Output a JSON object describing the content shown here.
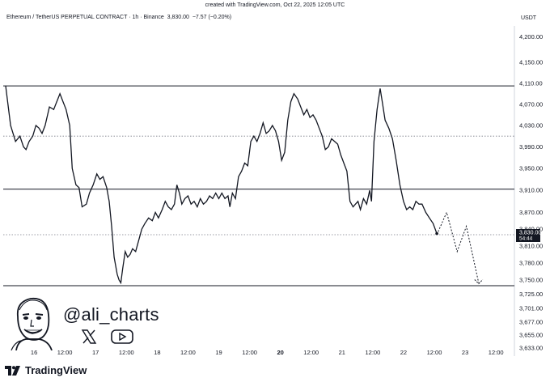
{
  "header": {
    "created": "created with TradingView.com, Oct 22, 2025 12:05 UTC",
    "symbol": "Ethereum / TetherUS PERPETUAL CONTRACT · 1h · Binance",
    "last": "3,830.00",
    "change": "−7.57 (−0.20%)",
    "currency": "USDT"
  },
  "price_label": {
    "price": "3,830.00",
    "countdown": "54:44"
  },
  "branding": {
    "handle": "@ali_charts",
    "footer": "TradingView"
  },
  "icons": {
    "avatar": "avatar-icon",
    "x": "x-icon",
    "youtube": "youtube-icon",
    "logo": "tradingview-logo-icon"
  },
  "colors": {
    "line": "#131722",
    "level": "#131722",
    "label_bg": "#131722"
  },
  "chart_data": {
    "type": "line",
    "title": "Ethereum / TetherUS PERPETUAL CONTRACT · 1h · Binance",
    "ylim": [
      3633,
      4215
    ],
    "y_scale": "log",
    "y_ticks": [
      "4,200.00",
      "4,150.00",
      "4,110.00",
      "4,070.00",
      "4,030.00",
      "3,990.00",
      "3,950.00",
      "3,910.00",
      "3,870.00",
      "3,840.00",
      "3,810.00",
      "3,780.00",
      "3,750.00",
      "3,725.00",
      "3,701.00",
      "3,677.00",
      "3,655.00",
      "3,633.00"
    ],
    "x_ticks": [
      {
        "label": "16",
        "x": 0.5
      },
      {
        "label": "12:00",
        "x": 1.0
      },
      {
        "label": "17",
        "x": 1.5
      },
      {
        "label": "12:00",
        "x": 2.0
      },
      {
        "label": "18",
        "x": 2.5
      },
      {
        "label": "12:00",
        "x": 3.0
      },
      {
        "label": "19",
        "x": 3.5
      },
      {
        "label": "12:00",
        "x": 4.0
      },
      {
        "label": "20",
        "x": 4.5,
        "bold": true
      },
      {
        "label": "12:00",
        "x": 5.0
      },
      {
        "label": "21",
        "x": 5.5
      },
      {
        "label": "12:00",
        "x": 6.0
      },
      {
        "label": "22",
        "x": 6.5
      },
      {
        "label": "12:00",
        "x": 7.0
      },
      {
        "label": "23",
        "x": 7.5
      },
      {
        "label": "12:00",
        "x": 8.0
      }
    ],
    "xlim": [
      0,
      8.3
    ],
    "horizontal_levels": [
      {
        "price": 4105,
        "style": "solid"
      },
      {
        "price": 3912,
        "style": "solid"
      },
      {
        "price": 3740,
        "style": "solid"
      },
      {
        "price": 4010,
        "style": "dotted"
      },
      {
        "price": 3830,
        "style": "dotted"
      }
    ],
    "series": [
      {
        "style": "solid",
        "points": [
          [
            0.04,
            4105
          ],
          [
            0.12,
            4030
          ],
          [
            0.2,
            4000
          ],
          [
            0.27,
            4010
          ],
          [
            0.33,
            3990
          ],
          [
            0.37,
            3985
          ],
          [
            0.42,
            4000
          ],
          [
            0.48,
            4010
          ],
          [
            0.53,
            4030
          ],
          [
            0.58,
            4025
          ],
          [
            0.63,
            4015
          ],
          [
            0.68,
            4030
          ],
          [
            0.75,
            4065
          ],
          [
            0.82,
            4060
          ],
          [
            0.87,
            4075
          ],
          [
            0.92,
            4090
          ],
          [
            0.97,
            4075
          ],
          [
            1.02,
            4060
          ],
          [
            1.08,
            4030
          ],
          [
            1.12,
            3950
          ],
          [
            1.18,
            3920
          ],
          [
            1.23,
            3915
          ],
          [
            1.28,
            3880
          ],
          [
            1.35,
            3885
          ],
          [
            1.4,
            3905
          ],
          [
            1.46,
            3920
          ],
          [
            1.52,
            3940
          ],
          [
            1.57,
            3930
          ],
          [
            1.62,
            3935
          ],
          [
            1.68,
            3915
          ],
          [
            1.72,
            3890
          ],
          [
            1.76,
            3845
          ],
          [
            1.8,
            3790
          ],
          [
            1.85,
            3760
          ],
          [
            1.88,
            3750
          ],
          [
            1.91,
            3745
          ],
          [
            1.94,
            3770
          ],
          [
            1.98,
            3800
          ],
          [
            2.02,
            3790
          ],
          [
            2.06,
            3795
          ],
          [
            2.1,
            3805
          ],
          [
            2.15,
            3800
          ],
          [
            2.2,
            3820
          ],
          [
            2.25,
            3840
          ],
          [
            2.3,
            3850
          ],
          [
            2.36,
            3860
          ],
          [
            2.42,
            3855
          ],
          [
            2.47,
            3870
          ],
          [
            2.52,
            3860
          ],
          [
            2.58,
            3875
          ],
          [
            2.63,
            3890
          ],
          [
            2.68,
            3880
          ],
          [
            2.73,
            3875
          ],
          [
            2.78,
            3885
          ],
          [
            2.82,
            3920
          ],
          [
            2.86,
            3905
          ],
          [
            2.9,
            3885
          ],
          [
            2.95,
            3895
          ],
          [
            3.0,
            3900
          ],
          [
            3.05,
            3885
          ],
          [
            3.1,
            3890
          ],
          [
            3.15,
            3880
          ],
          [
            3.2,
            3895
          ],
          [
            3.25,
            3885
          ],
          [
            3.3,
            3890
          ],
          [
            3.35,
            3900
          ],
          [
            3.4,
            3895
          ],
          [
            3.45,
            3905
          ],
          [
            3.5,
            3895
          ],
          [
            3.55,
            3905
          ],
          [
            3.6,
            3895
          ],
          [
            3.65,
            3900
          ],
          [
            3.68,
            3880
          ],
          [
            3.72,
            3905
          ],
          [
            3.77,
            3895
          ],
          [
            3.82,
            3935
          ],
          [
            3.87,
            3945
          ],
          [
            3.92,
            3960
          ],
          [
            3.97,
            3955
          ],
          [
            4.02,
            4000
          ],
          [
            4.07,
            4010
          ],
          [
            4.12,
            4000
          ],
          [
            4.17,
            4015
          ],
          [
            4.22,
            4035
          ],
          [
            4.27,
            4015
          ],
          [
            4.32,
            4020
          ],
          [
            4.37,
            4030
          ],
          [
            4.42,
            4020
          ],
          [
            4.47,
            4000
          ],
          [
            4.52,
            3965
          ],
          [
            4.57,
            3980
          ],
          [
            4.62,
            4040
          ],
          [
            4.67,
            4075
          ],
          [
            4.72,
            4090
          ],
          [
            4.78,
            4080
          ],
          [
            4.83,
            4065
          ],
          [
            4.88,
            4050
          ],
          [
            4.93,
            4060
          ],
          [
            4.98,
            4045
          ],
          [
            5.03,
            4050
          ],
          [
            5.08,
            4040
          ],
          [
            5.13,
            4025
          ],
          [
            5.18,
            4010
          ],
          [
            5.23,
            3985
          ],
          [
            5.28,
            3990
          ],
          [
            5.33,
            4005
          ],
          [
            5.38,
            4000
          ],
          [
            5.43,
            3995
          ],
          [
            5.48,
            3975
          ],
          [
            5.53,
            3960
          ],
          [
            5.58,
            3945
          ],
          [
            5.63,
            3890
          ],
          [
            5.68,
            3880
          ],
          [
            5.72,
            3885
          ],
          [
            5.76,
            3890
          ],
          [
            5.8,
            3875
          ],
          [
            5.85,
            3895
          ],
          [
            5.9,
            3885
          ],
          [
            5.95,
            3910
          ],
          [
            5.98,
            3890
          ],
          [
            6.02,
            4000
          ],
          [
            6.07,
            4060
          ],
          [
            6.12,
            4100
          ],
          [
            6.16,
            4070
          ],
          [
            6.2,
            4040
          ],
          [
            6.26,
            4025
          ],
          [
            6.32,
            4005
          ],
          [
            6.38,
            3965
          ],
          [
            6.44,
            3920
          ],
          [
            6.5,
            3890
          ],
          [
            6.55,
            3875
          ],
          [
            6.6,
            3880
          ],
          [
            6.65,
            3875
          ],
          [
            6.7,
            3890
          ],
          [
            6.75,
            3885
          ],
          [
            6.8,
            3885
          ],
          [
            6.86,
            3870
          ],
          [
            6.92,
            3860
          ],
          [
            6.98,
            3850
          ],
          [
            7.04,
            3832
          ]
        ]
      },
      {
        "style": "dotted",
        "points": [
          [
            7.04,
            3830
          ],
          [
            7.2,
            3870
          ],
          [
            7.37,
            3800
          ],
          [
            7.52,
            3845
          ],
          [
            7.72,
            3745
          ]
        ]
      }
    ]
  }
}
